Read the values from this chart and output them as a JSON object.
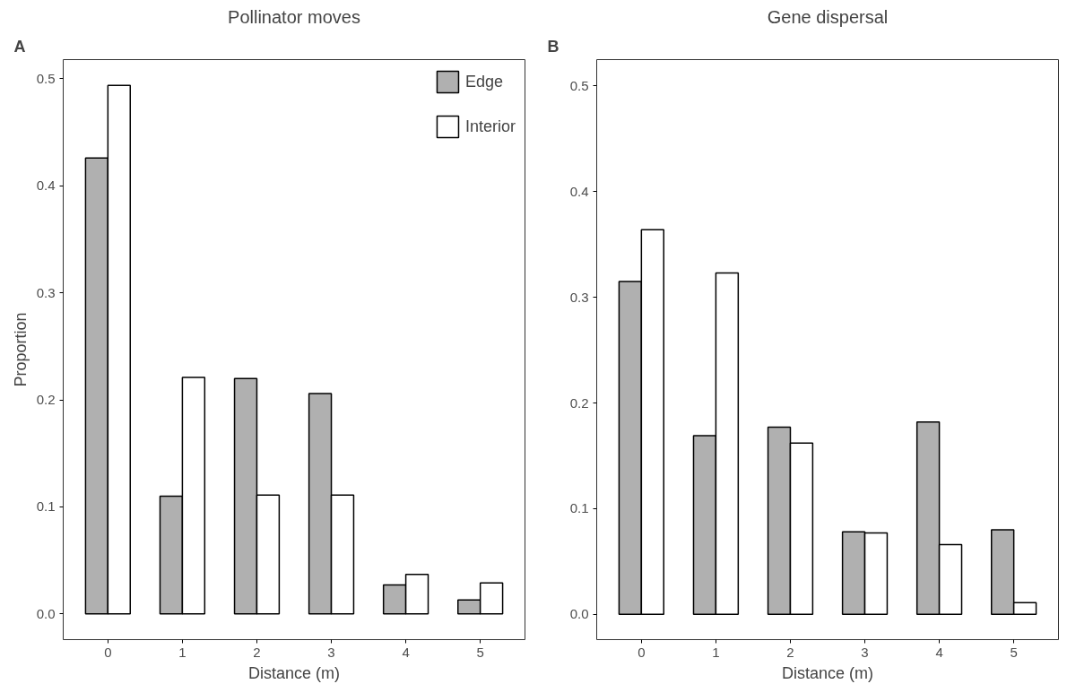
{
  "chart_data": [
    {
      "type": "bar",
      "title": "Pollinator moves",
      "xlabel": "Distance (m)",
      "ylabel": "Proportion",
      "annotations": [
        "A"
      ],
      "categories": [
        "0",
        "1",
        "2",
        "3",
        "4",
        "5"
      ],
      "series": [
        {
          "name": "Edge",
          "color": "#b0b0b0",
          "values": [
            0.426,
            0.11,
            0.22,
            0.206,
            0.027,
            0.013
          ]
        },
        {
          "name": "Interior",
          "color": "#ffffff",
          "values": [
            0.494,
            0.221,
            0.111,
            0.111,
            0.037,
            0.029
          ]
        }
      ],
      "ylim": [
        -0.024,
        0.518
      ],
      "yticks": [
        {
          "value": 0,
          "label": "0.0"
        },
        0.1,
        0.2,
        0.3,
        0.4,
        0.5
      ],
      "grid": false,
      "legend": "top right"
    },
    {
      "type": "bar",
      "title": "Gene dispersal",
      "xlabel": "Distance (m)",
      "annotations": [
        "B"
      ],
      "categories": [
        "0",
        "1",
        "2",
        "3",
        "4",
        "5"
      ],
      "series": [
        {
          "color": "#b0b0b0",
          "values": [
            0.315,
            0.169,
            0.177,
            0.078,
            0.182,
            0.08
          ]
        },
        {
          "color": "#ffffff",
          "values": [
            0.364,
            0.323,
            0.162,
            0.077,
            0.066,
            0.011
          ]
        }
      ],
      "ylim": [
        -0.024,
        0.525
      ],
      "yticks": [
        {
          "value": 0,
          "label": "0.0"
        },
        0.1,
        0.2,
        0.3,
        0.4,
        0.5
      ],
      "grid": false
    }
  ]
}
